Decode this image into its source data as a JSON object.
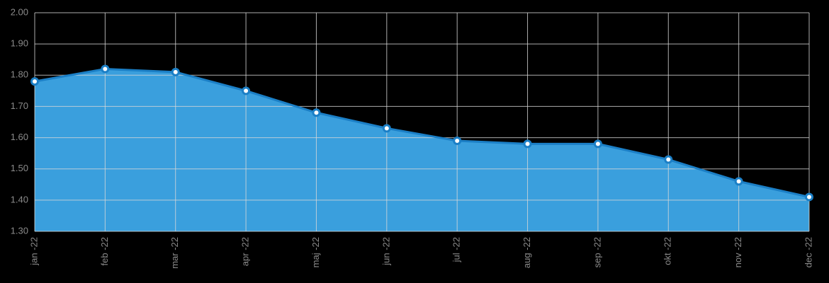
{
  "chart_data": {
    "type": "area",
    "categories": [
      "jan -22",
      "feb -22",
      "mar -22",
      "apr -22",
      "maj -22",
      "jun -22",
      "jul -22",
      "aug -22",
      "sep -22",
      "okt -22",
      "nov -22",
      "dec -22"
    ],
    "values": [
      1.78,
      1.82,
      1.81,
      1.75,
      1.68,
      1.63,
      1.59,
      1.58,
      1.58,
      1.53,
      1.46,
      1.41
    ],
    "color": "#3a9fdd",
    "line_color": "#1b7fc6",
    "ylim": [
      1.3,
      2.0
    ],
    "yticks": [
      {
        "value": 1.3,
        "label": "1.30"
      },
      {
        "value": 1.4,
        "label": "1.40"
      },
      {
        "value": 1.5,
        "label": "1.50"
      },
      {
        "value": 1.6,
        "label": "1.60"
      },
      {
        "value": 1.7,
        "label": "1.70"
      },
      {
        "value": 1.8,
        "label": "1.80"
      },
      {
        "value": 1.9,
        "label": "1.90"
      },
      {
        "value": 2.0,
        "label": "2.00"
      }
    ],
    "grid": true
  }
}
